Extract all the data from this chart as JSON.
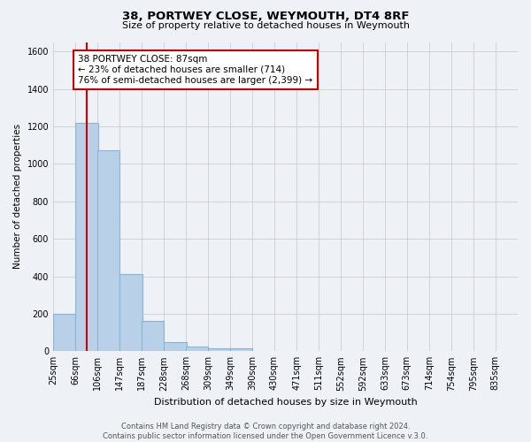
{
  "title": "38, PORTWEY CLOSE, WEYMOUTH, DT4 8RF",
  "subtitle": "Size of property relative to detached houses in Weymouth",
  "xlabel": "Distribution of detached houses by size in Weymouth",
  "ylabel": "Number of detached properties",
  "bar_values": [
    200,
    1220,
    1070,
    410,
    160,
    50,
    25,
    15,
    15,
    0,
    0,
    0,
    0,
    0,
    0,
    0,
    0,
    0,
    0,
    0
  ],
  "bin_starts": [
    25,
    66,
    106,
    147,
    187,
    228,
    268,
    309,
    349,
    390,
    430,
    471,
    511,
    552,
    592,
    633,
    673,
    714,
    754,
    795
  ],
  "bin_width": 41,
  "bin_labels": [
    "25sqm",
    "66sqm",
    "106sqm",
    "147sqm",
    "187sqm",
    "228sqm",
    "268sqm",
    "309sqm",
    "349sqm",
    "390sqm",
    "430sqm",
    "471sqm",
    "511sqm",
    "552sqm",
    "592sqm",
    "633sqm",
    "673sqm",
    "714sqm",
    "754sqm",
    "795sqm",
    "835sqm"
  ],
  "bar_color": "#b8d0e8",
  "bar_edge_color": "#8ab4d4",
  "property_line_x": 87,
  "property_line_color": "#cc0000",
  "annotation_line1": "38 PORTWEY CLOSE: 87sqm",
  "annotation_line2": "← 23% of detached houses are smaller (714)",
  "annotation_line3": "76% of semi-detached houses are larger (2,399) →",
  "annotation_box_color": "#ffffff",
  "annotation_box_edge_color": "#cc0000",
  "ylim": [
    0,
    1650
  ],
  "yticks": [
    0,
    200,
    400,
    600,
    800,
    1000,
    1200,
    1400,
    1600
  ],
  "xlim_min": 25,
  "xlim_max": 876,
  "footer_text": "Contains HM Land Registry data © Crown copyright and database right 2024.\nContains public sector information licensed under the Open Government Licence v.3.0.",
  "grid_color": "#cccccc",
  "background_color": "#eef2f7"
}
